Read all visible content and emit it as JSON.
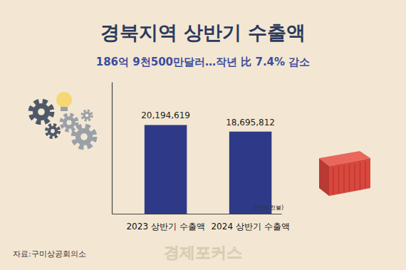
{
  "chart_data": {
    "type": "bar",
    "title": "경북지역 상반기 수출액",
    "subtitle": "186억 9천500만달러…작년 比 7.4% 감소",
    "categories": [
      "2023 상반기 수출액",
      "2024 상반기 수출액"
    ],
    "values": [
      20194619,
      18695812
    ],
    "value_labels": [
      "20,194,619",
      "18,695,812"
    ],
    "color": "#2e3a87",
    "ylim": [
      0,
      30000000
    ],
    "data_labels": true,
    "tick_labels": "x",
    "unit_label": "(단위:천불)",
    "source": "자료:구미상공회의소",
    "logo_text": "경제포커스"
  }
}
